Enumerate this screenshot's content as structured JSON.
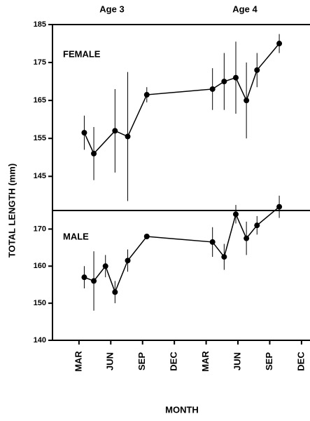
{
  "annotations": [
    "Age 3",
    "Age 4"
  ],
  "ylabel": "TOTAL LENGTH (mm)",
  "xlabel": "MONTH",
  "chart_data": [
    {
      "type": "line",
      "panel_label": "FEMALE",
      "color": "#000000",
      "xlim": [
        -0.5,
        23.8
      ],
      "ylim": [
        136,
        185
      ],
      "yticks": [
        145,
        155,
        165,
        175,
        185
      ],
      "x": [
        2.5,
        3.4,
        5.4,
        6.6,
        8.4,
        14.6,
        15.7,
        16.8,
        17.8,
        18.8,
        20.9
      ],
      "values": [
        156.5,
        151,
        157,
        155.5,
        166.5,
        168,
        170,
        171,
        165,
        173,
        180
      ],
      "errors": [
        4.5,
        7,
        11,
        17,
        2,
        5.5,
        7.5,
        9.5,
        10,
        4.5,
        2.5
      ]
    },
    {
      "type": "line",
      "panel_label": "MALE",
      "color": "#000000",
      "xlim": [
        -0.5,
        23.8
      ],
      "ylim": [
        140,
        175
      ],
      "yticks": [
        140,
        150,
        160,
        170
      ],
      "xticks": [
        {
          "value": 2,
          "label": "MAR"
        },
        {
          "value": 5,
          "label": "JUN"
        },
        {
          "value": 8,
          "label": "SEP"
        },
        {
          "value": 11,
          "label": "DEC"
        },
        {
          "value": 14,
          "label": "MAR"
        },
        {
          "value": 17,
          "label": "JUN"
        },
        {
          "value": 20,
          "label": "SEP"
        },
        {
          "value": 23,
          "label": "DEC"
        }
      ],
      "x": [
        2.5,
        3.4,
        4.5,
        5.4,
        6.6,
        8.4,
        14.6,
        15.7,
        16.8,
        17.8,
        18.8,
        20.9
      ],
      "values": [
        157,
        156,
        160,
        153,
        161.5,
        168,
        166.5,
        162.5,
        174,
        167.5,
        171,
        176
      ],
      "errors": [
        3,
        8,
        3,
        3,
        3,
        0,
        4,
        3.5,
        2.5,
        4.5,
        2.5,
        3
      ]
    }
  ]
}
